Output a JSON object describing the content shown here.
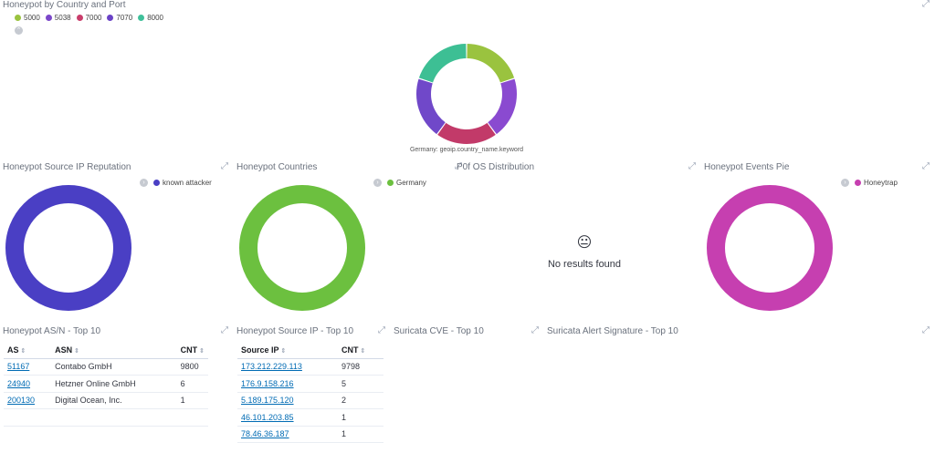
{
  "top_panel": {
    "title": "Honeypot by Country and Port",
    "legend": [
      {
        "label": "5000",
        "color": "#9ac33f"
      },
      {
        "label": "5038",
        "color": "#7b47c9"
      },
      {
        "label": "7000",
        "color": "#c93d6b"
      },
      {
        "label": "7070",
        "color": "#6a42c6"
      },
      {
        "label": "8000",
        "color": "#3fc09a"
      }
    ],
    "legend_toggle_icon": "chevron-up-icon",
    "caption": "Germany: geoip.country_name.keyword",
    "slices": [
      {
        "label": "5000",
        "fraction": 0.2,
        "color": "#9ac33f"
      },
      {
        "label": "5038",
        "fraction": 0.2,
        "color": "#8a4ad0"
      },
      {
        "label": "7000",
        "fraction": 0.2,
        "color": "#c23a69"
      },
      {
        "label": "7070",
        "fraction": 0.2,
        "color": "#7048c9"
      },
      {
        "label": "8000",
        "fraction": 0.2,
        "color": "#3dbf94"
      }
    ]
  },
  "panels": {
    "reputation": {
      "title": "Honeypot Source IP Reputation",
      "legend_label": "known attacker",
      "color": "#4a3fc4"
    },
    "countries": {
      "title": "Honeypot Countries",
      "legend_label": "Germany",
      "color": "#6cc03f"
    },
    "p0f": {
      "title": "P0f OS Distribution",
      "no_results": "No results found",
      "icon": "neutral-face-icon"
    },
    "events": {
      "title": "Honeypot Events Pie",
      "legend_label": "Honeytrap",
      "color": "#c63fb0"
    }
  },
  "asn_table": {
    "title": "Honeypot AS/N - Top 10",
    "headers": [
      "AS",
      "ASN",
      "CNT"
    ],
    "rows": [
      [
        "51167",
        "Contabo GmbH",
        "9800"
      ],
      [
        "24940",
        "Hetzner Online GmbH",
        "6"
      ],
      [
        "200130",
        "Digital Ocean, Inc.",
        "1"
      ]
    ]
  },
  "srcip_table": {
    "title": "Honeypot Source IP - Top 10",
    "headers": [
      "Source IP",
      "CNT"
    ],
    "rows": [
      [
        "173.212.229.113",
        "9798"
      ],
      [
        "176.9.158.216",
        "5"
      ],
      [
        "5.189.175.120",
        "2"
      ],
      [
        "46.101.203.85",
        "1"
      ],
      [
        "78.46.36.187",
        "1"
      ]
    ]
  },
  "cve_panel": {
    "title": "Suricata CVE - Top 10"
  },
  "alert_panel": {
    "title": "Suricata Alert Signature - Top 10"
  },
  "icons": {
    "expand": "expand-icon",
    "sort": "sort-icon",
    "legend_toggle": "chevron-right-icon"
  }
}
